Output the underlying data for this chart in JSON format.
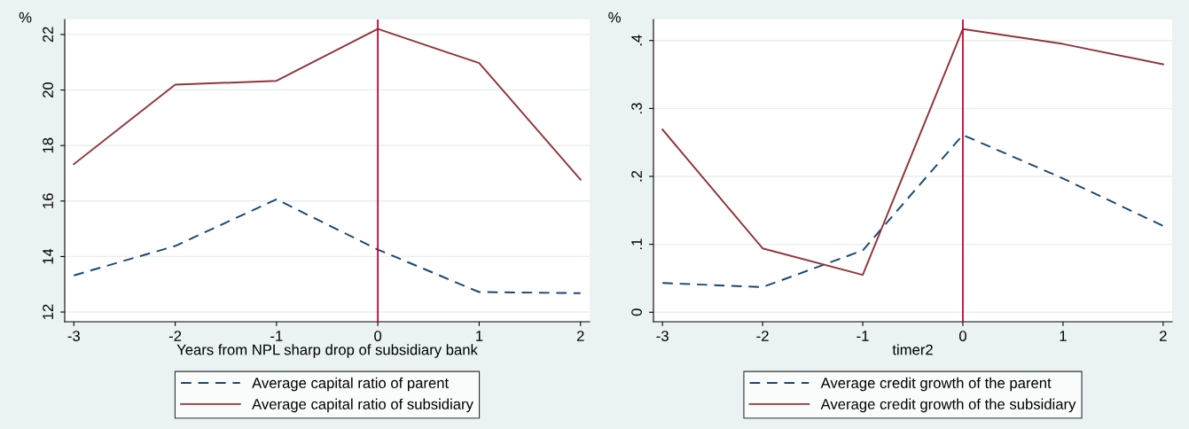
{
  "chart_data": [
    {
      "type": "line",
      "xlabel": "Years from NPL sharp drop of subsidiary bank",
      "ylabel": "%",
      "x": [
        -3,
        -2,
        -1,
        0,
        1,
        2
      ],
      "series": [
        {
          "name": "Average capital ratio of parent",
          "color": "#1a476f",
          "line_style": "dashed",
          "values": [
            13.32,
            14.38,
            16.06,
            14.25,
            12.72,
            12.68
          ]
        },
        {
          "name": "Average capital ratio of subsidiary",
          "color": "#90353b",
          "line_style": "solid",
          "values": [
            17.33,
            20.19,
            20.33,
            22.2,
            20.97,
            16.77
          ]
        }
      ],
      "xlim": [
        -3.09,
        2.09
      ],
      "xticks": [
        -3,
        -2,
        -1,
        0,
        1,
        2
      ],
      "ylim": [
        11.65,
        22.54
      ],
      "yticks": [
        12,
        14,
        16,
        18,
        20,
        22
      ],
      "ref_lines": [
        {
          "axis": "x",
          "value": 0,
          "color": "#c10534"
        }
      ],
      "grid": "y",
      "legend": "bottom",
      "marker": "none"
    },
    {
      "type": "line",
      "xlabel": "timer2",
      "ylabel": "%",
      "x": [
        -3,
        -2,
        -1,
        0,
        1,
        2
      ],
      "series": [
        {
          "name": "Average credit growth of the parent",
          "color": "#1a476f",
          "line_style": "dashed",
          "values": [
            0.043,
            0.037,
            0.091,
            0.261,
            0.197,
            0.127
          ]
        },
        {
          "name": "Average credit growth of the subsidiary",
          "color": "#90353b",
          "line_style": "solid",
          "values": [
            0.269,
            0.094,
            0.055,
            0.417,
            0.395,
            0.365
          ]
        }
      ],
      "xlim": [
        -3.09,
        2.09
      ],
      "xticks": [
        -3,
        -2,
        -1,
        0,
        1,
        2
      ],
      "ylim": [
        -0.014,
        0.431
      ],
      "yticks": [
        0,
        {
          "value": 0.1,
          "label": ".1"
        },
        {
          "value": 0.2,
          "label": ".2"
        },
        {
          "value": 0.3,
          "label": ".3"
        },
        {
          "value": 0.4,
          "label": ".4"
        }
      ],
      "ref_lines": [
        {
          "axis": "x",
          "value": 0,
          "color": "#c10534"
        }
      ],
      "grid": "y",
      "legend": "bottom",
      "marker": "none"
    }
  ]
}
